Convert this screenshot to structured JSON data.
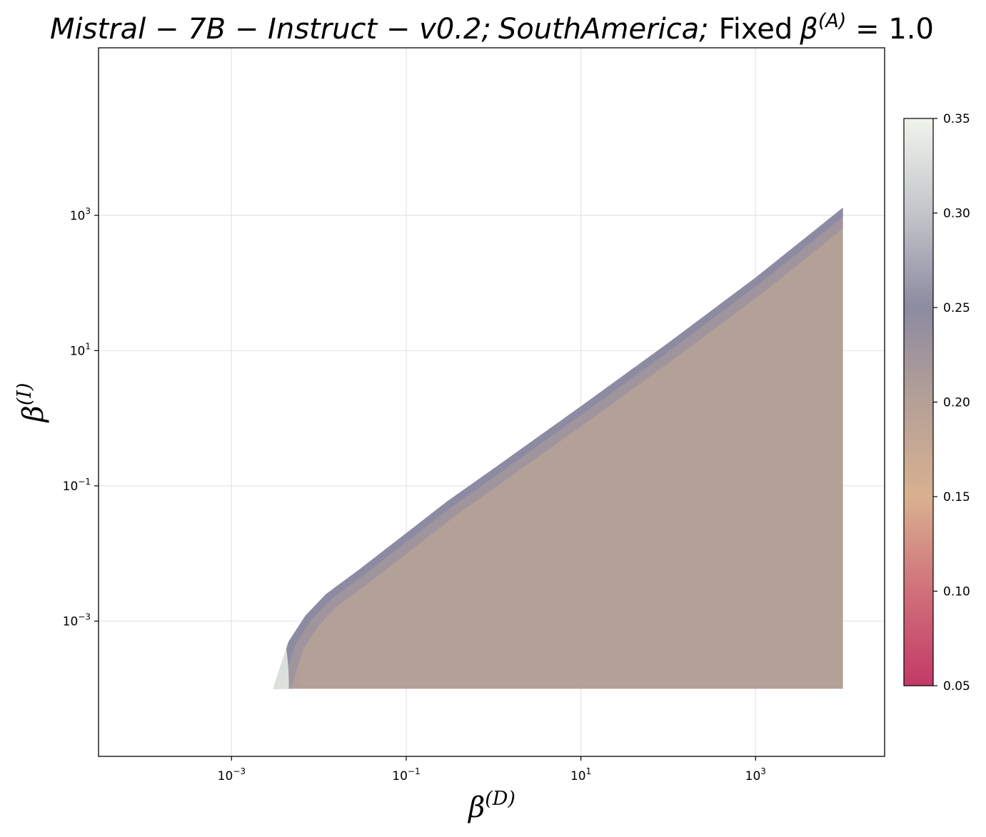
{
  "chart_data": {
    "type": "heatmap",
    "title": {
      "model": "Mistral − 7B − Instruct − v0.2;",
      "region": "SouthAmerica;",
      "fixed_prefix": "Fixed",
      "fixed_symbol": "β",
      "fixed_sup": "(A)",
      "fixed_eq": " = 1.0"
    },
    "xlabel": {
      "symbol": "β",
      "sup": "(D)"
    },
    "ylabel": {
      "symbol": "β",
      "sup": "(I)"
    },
    "x_scale": "log",
    "y_scale": "log",
    "xlim": [
      3e-05,
      30000
    ],
    "ylim": [
      1e-05,
      300000
    ],
    "x_ticks": [
      {
        "value": 0.001,
        "base": "10",
        "exp": "−3"
      },
      {
        "value": 0.1,
        "base": "10",
        "exp": "−1"
      },
      {
        "value": 10,
        "base": "10",
        "exp": "1"
      },
      {
        "value": 1000,
        "base": "10",
        "exp": "3"
      }
    ],
    "y_ticks": [
      {
        "value": 0.001,
        "base": "10",
        "exp": "−3"
      },
      {
        "value": 0.1,
        "base": "10",
        "exp": "−1"
      },
      {
        "value": 10,
        "base": "10",
        "exp": "1"
      },
      {
        "value": 1000,
        "base": "10",
        "exp": "3"
      }
    ],
    "grid": true,
    "filled_region": {
      "x_range": [
        0.003,
        10000
      ],
      "y_min": 0.0001,
      "upper_boundary": [
        {
          "x": 0.003,
          "y": 0.0001
        },
        {
          "x": 0.0045,
          "y": 0.0005
        },
        {
          "x": 0.007,
          "y": 0.0012
        },
        {
          "x": 0.012,
          "y": 0.0025
        },
        {
          "x": 0.03,
          "y": 0.006
        },
        {
          "x": 0.1,
          "y": 0.02
        },
        {
          "x": 0.3,
          "y": 0.06
        },
        {
          "x": 1,
          "y": 0.18
        },
        {
          "x": 10,
          "y": 1.5
        },
        {
          "x": 100,
          "y": 13
        },
        {
          "x": 1000,
          "y": 120
        },
        {
          "x": 10000,
          "y": 1300
        }
      ],
      "value_at_upper_edge": 0.25,
      "value_at_left_tip": 0.34,
      "value_interior": 0.2
    },
    "colorbar": {
      "range": [
        0.05,
        0.35
      ],
      "ticks": [
        "0.35",
        "0.30",
        "0.25",
        "0.20",
        "0.15",
        "0.10",
        "0.05"
      ],
      "colors": [
        {
          "v": 0.05,
          "color": "#c23a66"
        },
        {
          "v": 0.1,
          "color": "#d0707a"
        },
        {
          "v": 0.15,
          "color": "#d8b190"
        },
        {
          "v": 0.2,
          "color": "#b5a097"
        },
        {
          "v": 0.25,
          "color": "#8c8ba0"
        },
        {
          "v": 0.3,
          "color": "#c3c5ca"
        },
        {
          "v": 0.35,
          "color": "#f0f4ec"
        }
      ]
    }
  }
}
